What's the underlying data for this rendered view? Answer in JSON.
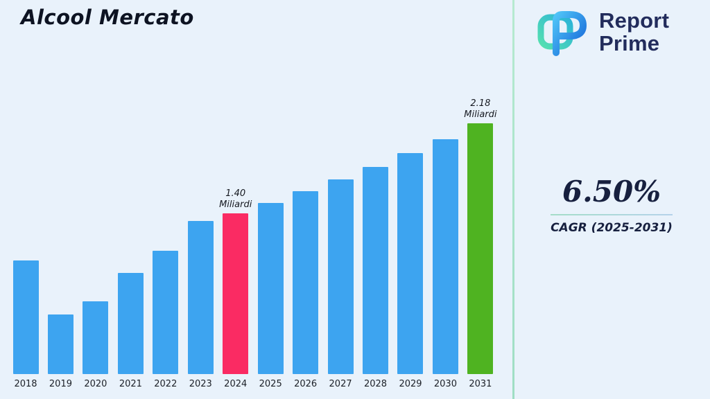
{
  "page": {
    "title": "Alcool Mercato"
  },
  "logo": {
    "line1": "Report",
    "line2": "Prime"
  },
  "cagr": {
    "value": "6.50%",
    "label": "CAGR (2025-2031)"
  },
  "colors": {
    "background": "#e9f2fb",
    "bar_blue": "#3da4f0",
    "bar_pink": "#fa2b63",
    "bar_green": "#4fb321",
    "divider_green": "#a9e2c6",
    "brand_navy": "#222c5c"
  },
  "chart_data": {
    "type": "bar",
    "title": "Alcool Mercato",
    "unit": "Miliardi",
    "categories": [
      "2018",
      "2019",
      "2020",
      "2021",
      "2022",
      "2023",
      "2024",
      "2025",
      "2026",
      "2027",
      "2028",
      "2029",
      "2030",
      "2031"
    ],
    "values": [
      0.99,
      0.52,
      0.63,
      0.88,
      1.07,
      1.33,
      1.4,
      1.49,
      1.59,
      1.69,
      1.8,
      1.92,
      2.04,
      2.18
    ],
    "ylim": [
      0,
      2.3
    ],
    "grid": false,
    "legend": false,
    "bar_default_color": "#3da4f0",
    "highlights": [
      {
        "index": 6,
        "color": "#fa2b63",
        "label": "1.40\nMiliardi"
      },
      {
        "index": 13,
        "color": "#4fb321",
        "label": "2.18\nMiliardi"
      }
    ]
  }
}
